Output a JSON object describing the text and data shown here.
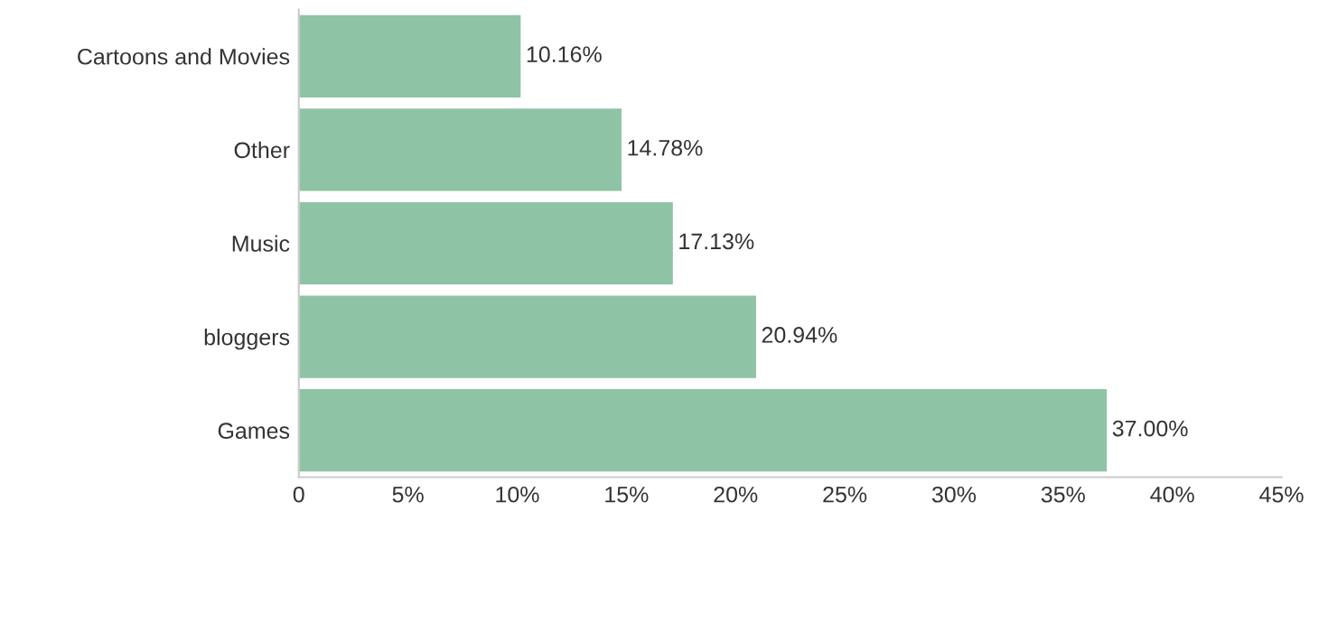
{
  "chart_data": {
    "type": "bar",
    "orientation": "horizontal",
    "categories": [
      "Cartoons and Movies",
      "Other",
      "Music",
      "bloggers",
      "Games"
    ],
    "values": [
      10.16,
      14.78,
      17.13,
      20.94,
      37.0
    ],
    "color": "#8fc3a6",
    "value_labels": [
      "10.16%",
      "14.78%",
      "17.13%",
      "20.94%",
      "37.00%"
    ],
    "xlim": [
      0,
      45
    ],
    "xticks": [
      0,
      {
        "value": 5,
        "label": "5%"
      },
      {
        "value": 10,
        "label": "10%"
      },
      {
        "value": 15,
        "label": "15%"
      },
      {
        "value": 20,
        "label": "20%"
      },
      {
        "value": 25,
        "label": "25%"
      },
      {
        "value": 30,
        "label": "30%"
      },
      {
        "value": 35,
        "label": "35%"
      },
      {
        "value": 40,
        "label": "40%"
      },
      {
        "value": 45,
        "label": "45%"
      }
    ],
    "grid": false,
    "legend": false
  }
}
